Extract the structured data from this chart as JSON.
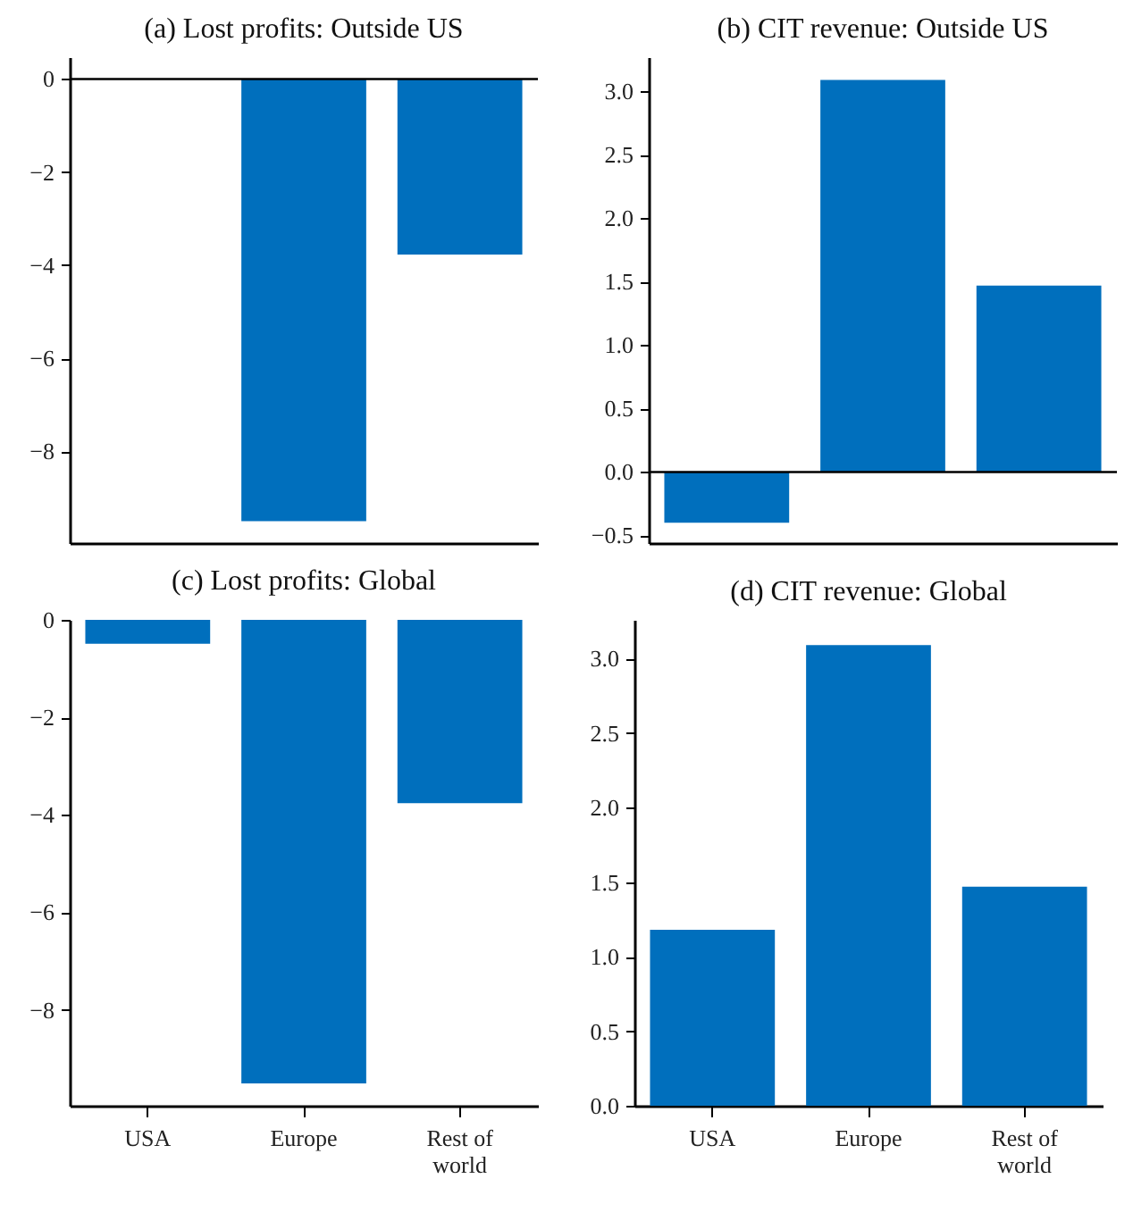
{
  "chart_data": [
    {
      "type": "bar",
      "title": "(a) Lost profits: Outside US",
      "categories": [
        null,
        null,
        null
      ],
      "values": [
        0,
        -9.5,
        -3.77
      ],
      "color": "#006fbd",
      "ylim": [
        -9.97,
        0.47
      ],
      "yticks": [
        {
          "value": -8,
          "label": "−8"
        },
        {
          "value": -6,
          "label": "−6"
        },
        {
          "value": -4,
          "label": "−4"
        },
        {
          "value": -2,
          "label": "−2"
        },
        0
      ],
      "ref_lines": [
        {
          "axis": "y",
          "value": 0,
          "color": "#000000"
        }
      ],
      "tick_labels": "y",
      "grid": false
    },
    {
      "type": "bar",
      "title": "(b) CIT revenue: Outside US",
      "categories": [
        null,
        null,
        null
      ],
      "values": [
        -0.4,
        3.09,
        1.47
      ],
      "color": "#006fbd",
      "ylim": [
        -0.56,
        3.27
      ],
      "yticks": [
        {
          "value": -0.5,
          "label": "−0.5"
        },
        {
          "value": 0,
          "label": "0.0"
        },
        {
          "value": 0.5,
          "label": "0.5"
        },
        {
          "value": 1,
          "label": "1.0"
        },
        {
          "value": 1.5,
          "label": "1.5"
        },
        {
          "value": 2,
          "label": "2.0"
        },
        {
          "value": 2.5,
          "label": "2.5"
        },
        {
          "value": 3,
          "label": "3.0"
        }
      ],
      "ref_lines": [
        {
          "axis": "y",
          "value": 0,
          "color": "#000000"
        }
      ],
      "tick_labels": "y",
      "grid": false
    },
    {
      "type": "bar",
      "title": "(c) Lost profits: Global",
      "categories": [
        "USA",
        "Europe",
        "Rest of world"
      ],
      "values": [
        -0.49,
        -9.51,
        -3.76
      ],
      "color": "#006fbd",
      "ylim": [
        -9.97,
        0
      ],
      "yticks": [
        {
          "value": -8,
          "label": "−8"
        },
        {
          "value": -6,
          "label": "−6"
        },
        {
          "value": -4,
          "label": "−4"
        },
        {
          "value": -2,
          "label": "−2"
        },
        0
      ],
      "grid": false
    },
    {
      "type": "bar",
      "title": "(d) CIT revenue: Global",
      "categories": [
        "USA",
        "Europe",
        "Rest of world"
      ],
      "values": [
        1.18,
        3.09,
        1.47
      ],
      "color": "#006fbd",
      "ylim": [
        0,
        3.26
      ],
      "yticks": [
        {
          "value": 0,
          "label": "0.0"
        },
        {
          "value": 0.5,
          "label": "0.5"
        },
        {
          "value": 1,
          "label": "1.0"
        },
        {
          "value": 1.5,
          "label": "1.5"
        },
        {
          "value": 2,
          "label": "2.0"
        },
        {
          "value": 2.5,
          "label": "2.5"
        },
        {
          "value": 3,
          "label": "3.0"
        }
      ],
      "grid": false
    }
  ]
}
